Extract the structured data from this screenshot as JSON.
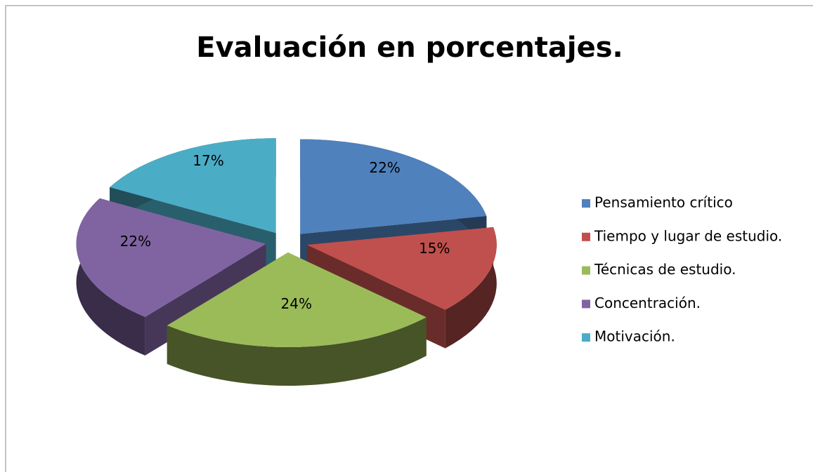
{
  "chart_data": {
    "type": "pie",
    "title": "Evaluación en porcentajes.",
    "categories": [
      "Pensamiento crítico",
      "Tiempo y lugar de estudio.",
      "Técnicas de estudio.",
      "Concentración.",
      "Motivación."
    ],
    "values": [
      22,
      15,
      24,
      22,
      17
    ],
    "value_labels": [
      "22%",
      "15%",
      "24%",
      "22%",
      "17%"
    ],
    "colors": [
      "#4f81bd",
      "#c0504d",
      "#9bbb59",
      "#8064a2",
      "#4bacc6"
    ]
  }
}
